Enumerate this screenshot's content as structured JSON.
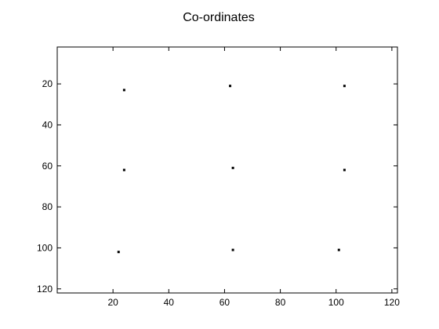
{
  "chart_data": {
    "type": "scatter",
    "title": "Co-ordinates",
    "xlabel": "",
    "ylabel": "",
    "xlim": [
      0,
      122
    ],
    "ylim": [
      2,
      122
    ],
    "y_reversed": true,
    "grid": false,
    "legend": "none",
    "marker_color": "#000000",
    "x_ticks": [
      20,
      40,
      60,
      80,
      100,
      120
    ],
    "y_ticks": [
      20,
      40,
      60,
      80,
      100,
      120
    ],
    "points": [
      {
        "x": 24,
        "y": 23
      },
      {
        "x": 62,
        "y": 21
      },
      {
        "x": 103,
        "y": 21
      },
      {
        "x": 24,
        "y": 62
      },
      {
        "x": 63,
        "y": 61
      },
      {
        "x": 103,
        "y": 62
      },
      {
        "x": 22,
        "y": 102
      },
      {
        "x": 63,
        "y": 101
      },
      {
        "x": 101,
        "y": 101
      }
    ]
  }
}
